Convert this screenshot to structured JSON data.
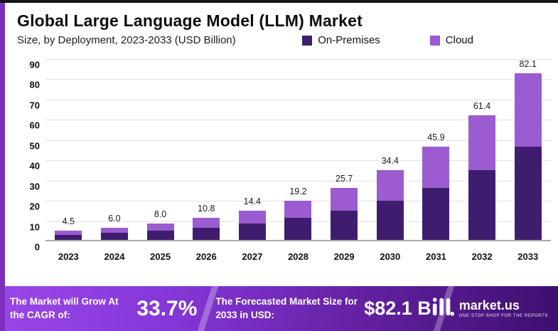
{
  "header": {
    "title": "Global Large Language Model (LLM) Market",
    "subtitle": "Size, by Deployment, 2023-2033 (USD Billion)"
  },
  "legend": [
    {
      "label": "On-Premises",
      "color": "#3f1d6e"
    },
    {
      "label": "Cloud",
      "color": "#9a5cd0"
    }
  ],
  "chart_data": {
    "type": "bar",
    "stacked": true,
    "title": "Global Large Language Model (LLM) Market",
    "subtitle": "Size, by Deployment, 2023-2033 (USD Billion)",
    "unit": "USD Billion",
    "categories": [
      "2023",
      "2024",
      "2025",
      "2026",
      "2027",
      "2028",
      "2029",
      "2030",
      "2031",
      "2032",
      "2033"
    ],
    "series": [
      {
        "name": "On-Premises",
        "color": "#3f1d6e",
        "values": [
          2.5,
          3.4,
          4.5,
          6.1,
          8.1,
          10.8,
          14.4,
          19.3,
          25.8,
          34.5,
          46.1
        ]
      },
      {
        "name": "Cloud",
        "color": "#9a5cd0",
        "values": [
          2.0,
          2.6,
          3.5,
          4.7,
          6.3,
          8.4,
          11.3,
          15.1,
          20.1,
          26.9,
          36.0
        ]
      }
    ],
    "totals": [
      4.5,
      6.0,
      8.0,
      10.8,
      14.4,
      19.2,
      25.7,
      34.4,
      45.9,
      61.4,
      82.1
    ],
    "total_labels": [
      "4.5",
      "6.0",
      "8.0",
      "10.8",
      "14.4",
      "19.2",
      "25.7",
      "34.4",
      "45.9",
      "61.4",
      "82.1"
    ],
    "ylim": [
      0,
      90
    ],
    "yticks": [
      0,
      10,
      20,
      30,
      40,
      50,
      60,
      70,
      80,
      90
    ],
    "grid": true,
    "legend_position": "top-right"
  },
  "footer": {
    "cagr_label": "The Market will Grow At the CAGR of:",
    "cagr_value": "33.7%",
    "forecast_label": "The Forecasted Market Size for 2033 in USD:",
    "forecast_value": "$82.1 B",
    "logo_text": "market.us",
    "logo_tagline": "ONE STOP SHOP FOR THE REPORTS"
  }
}
